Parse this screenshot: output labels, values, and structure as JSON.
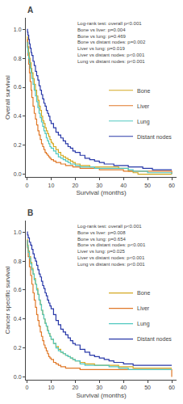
{
  "chart_data": [
    {
      "type": "step",
      "title": "A",
      "xlabel": "Survival (months)",
      "ylabel": "Overall survival",
      "annotation": "Log-rank test: overall p<0.001\nBone vs liver: p=0.004\nBone vs lung: p=0.469\nBone vs distant nodes: p=0.002\nLiver vs lung: p=0.019\nLiver vs distant nodes: p<0.001\nLung vs distant nodes: p<0.001",
      "xlim": [
        -0.5,
        62
      ],
      "ylim": [
        -0.02,
        1.08
      ],
      "xticks": [
        0,
        10,
        20,
        30,
        40,
        50,
        60
      ],
      "yticks": [
        {
          "value": 0.0,
          "label": "0.0"
        },
        0.2,
        0.4,
        0.6,
        0.8,
        {
          "value": 1.0,
          "label": "1.0"
        }
      ],
      "grid": false,
      "legend": "right",
      "series": [
        {
          "name": "Bone",
          "color": "#D4A820",
          "x": [
            0,
            0.2,
            0.4,
            0.7,
            1,
            1.3,
            1.7,
            2,
            2.5,
            3,
            3.5,
            4,
            4.5,
            5,
            5.5,
            6,
            6.5,
            7,
            7.5,
            8,
            8.5,
            9,
            9.5,
            10,
            10.5,
            11,
            12,
            13,
            14,
            15,
            16,
            17,
            18,
            19,
            20,
            21,
            22,
            24,
            26,
            28,
            30,
            32,
            34,
            36,
            38,
            40,
            42,
            44,
            46,
            60
          ],
          "values": [
            0.95,
            0.91,
            0.88,
            0.84,
            0.8,
            0.77,
            0.73,
            0.7,
            0.66,
            0.62,
            0.58,
            0.54,
            0.51,
            0.47,
            0.44,
            0.4,
            0.37,
            0.35,
            0.32,
            0.3,
            0.28,
            0.26,
            0.24,
            0.22,
            0.21,
            0.19,
            0.17,
            0.15,
            0.13,
            0.12,
            0.11,
            0.1,
            0.09,
            0.08,
            0.07,
            0.07,
            0.06,
            0.06,
            0.05,
            0.05,
            0.05,
            0.05,
            0.05,
            0.05,
            0.04,
            0.04,
            0.02,
            0.01,
            0.0,
            0.0
          ]
        },
        {
          "name": "Liver",
          "color": "#E07828",
          "x": [
            0,
            0.2,
            0.4,
            0.7,
            1,
            1.3,
            1.7,
            2,
            2.5,
            3,
            3.5,
            4,
            4.5,
            5,
            5.5,
            6,
            6.5,
            7,
            7.5,
            8,
            8.5,
            9,
            9.5,
            10,
            11,
            12,
            13,
            14,
            15,
            16,
            17,
            18,
            19,
            20,
            22,
            24,
            26,
            28,
            30,
            32,
            34,
            36,
            40,
            60
          ],
          "values": [
            0.93,
            0.88,
            0.82,
            0.76,
            0.7,
            0.64,
            0.58,
            0.53,
            0.47,
            0.42,
            0.38,
            0.34,
            0.3,
            0.27,
            0.24,
            0.21,
            0.19,
            0.17,
            0.15,
            0.14,
            0.13,
            0.12,
            0.11,
            0.1,
            0.09,
            0.08,
            0.08,
            0.07,
            0.07,
            0.06,
            0.06,
            0.06,
            0.05,
            0.05,
            0.04,
            0.04,
            0.04,
            0.04,
            0.03,
            0.03,
            0.03,
            0.03,
            0.02,
            0.0
          ]
        },
        {
          "name": "Lung",
          "color": "#50C8C0",
          "x": [
            0,
            0.2,
            0.4,
            0.7,
            1,
            1.3,
            1.7,
            2,
            2.5,
            3,
            3.5,
            4,
            4.5,
            5,
            5.5,
            6,
            6.5,
            7,
            7.5,
            8,
            8.5,
            9,
            9.5,
            10,
            11,
            12,
            13,
            14,
            15,
            16,
            17,
            18,
            19,
            20,
            22,
            24,
            26,
            28,
            30,
            32,
            34,
            36,
            38,
            40,
            42,
            44,
            50,
            52,
            55,
            60
          ],
          "values": [
            0.91,
            0.87,
            0.84,
            0.8,
            0.77,
            0.73,
            0.7,
            0.66,
            0.62,
            0.58,
            0.54,
            0.5,
            0.46,
            0.42,
            0.39,
            0.36,
            0.33,
            0.3,
            0.28,
            0.25,
            0.23,
            0.21,
            0.19,
            0.18,
            0.16,
            0.14,
            0.12,
            0.11,
            0.1,
            0.09,
            0.08,
            0.07,
            0.07,
            0.06,
            0.05,
            0.05,
            0.05,
            0.04,
            0.04,
            0.04,
            0.04,
            0.04,
            0.04,
            0.04,
            0.03,
            0.02,
            0.01,
            0.01,
            0.01,
            0.0
          ]
        },
        {
          "name": "Distant nodes",
          "color": "#2838A8",
          "x": [
            0,
            0.2,
            0.4,
            0.7,
            1,
            1.3,
            1.7,
            2,
            2.5,
            3,
            3.5,
            4,
            4.5,
            5,
            5.5,
            6,
            6.5,
            7,
            7.5,
            8,
            8.5,
            9,
            9.5,
            10,
            11,
            12,
            13,
            14,
            15,
            16,
            17,
            18,
            19,
            20,
            22,
            24,
            26,
            28,
            30,
            32,
            34,
            36,
            38,
            40,
            42,
            44,
            46,
            48,
            50,
            52,
            55,
            58,
            60
          ],
          "values": [
            1.0,
            0.98,
            0.96,
            0.93,
            0.9,
            0.87,
            0.84,
            0.82,
            0.78,
            0.75,
            0.71,
            0.68,
            0.65,
            0.61,
            0.58,
            0.55,
            0.52,
            0.49,
            0.47,
            0.44,
            0.42,
            0.4,
            0.37,
            0.35,
            0.32,
            0.29,
            0.27,
            0.25,
            0.23,
            0.21,
            0.19,
            0.18,
            0.16,
            0.15,
            0.13,
            0.11,
            0.1,
            0.09,
            0.08,
            0.07,
            0.07,
            0.06,
            0.06,
            0.06,
            0.05,
            0.05,
            0.05,
            0.04,
            0.04,
            0.03,
            0.03,
            0.03,
            0.03
          ]
        }
      ]
    },
    {
      "type": "step",
      "title": "B",
      "xlabel": "Survival (months)",
      "ylabel": "Cancer specific survival",
      "annotation": "Log-rank test: overall p<0.001\nBone vs liver: p=0.008\nBone vs lung: p=0.654\nBone vs distant nodes: p<0.001\nLiver vs lung: p=0.025\nLiver vs distant nodes: p<0.001\nLung vs distant nodes: p<0.001",
      "xlim": [
        -0.5,
        62
      ],
      "ylim": [
        -0.02,
        1.08
      ],
      "xticks": [
        0,
        10,
        20,
        30,
        40,
        50,
        60
      ],
      "yticks": [
        {
          "value": 0.0,
          "label": "0.0"
        },
        0.2,
        0.4,
        0.6,
        0.8,
        {
          "value": 1.0,
          "label": "1.0"
        }
      ],
      "grid": false,
      "legend": "right",
      "series": [
        {
          "name": "Bone",
          "color": "#D4A820",
          "x": [
            0,
            0.2,
            0.5,
            1,
            1.5,
            2,
            2.5,
            3,
            3.5,
            4,
            4.5,
            5,
            5.5,
            6,
            6.5,
            7,
            7.5,
            8,
            8.5,
            9,
            9.5,
            10,
            11,
            12,
            13,
            14,
            15,
            16,
            17,
            18,
            19,
            20,
            22,
            24,
            26,
            28,
            30,
            32,
            34,
            36,
            38,
            40,
            42,
            44,
            50,
            55,
            60
          ],
          "values": [
            0.95,
            0.91,
            0.87,
            0.83,
            0.79,
            0.75,
            0.71,
            0.68,
            0.64,
            0.61,
            0.57,
            0.53,
            0.5,
            0.46,
            0.43,
            0.4,
            0.37,
            0.35,
            0.32,
            0.3,
            0.28,
            0.26,
            0.23,
            0.21,
            0.19,
            0.17,
            0.16,
            0.15,
            0.14,
            0.13,
            0.12,
            0.11,
            0.1,
            0.09,
            0.09,
            0.08,
            0.08,
            0.08,
            0.08,
            0.08,
            0.07,
            0.07,
            0.07,
            0.06,
            0.06,
            0.06,
            0.06
          ]
        },
        {
          "name": "Liver",
          "color": "#E07828",
          "x": [
            0,
            0.2,
            0.5,
            1,
            1.5,
            2,
            2.5,
            3,
            3.5,
            4,
            4.5,
            5,
            5.5,
            6,
            6.5,
            7,
            7.5,
            8,
            8.5,
            9,
            9.5,
            10,
            11,
            12,
            13,
            14,
            15,
            16,
            17,
            18,
            19,
            20,
            22,
            24,
            26,
            28,
            30,
            32,
            34,
            36,
            38,
            40,
            60
          ],
          "values": [
            0.94,
            0.89,
            0.83,
            0.76,
            0.7,
            0.64,
            0.58,
            0.53,
            0.48,
            0.43,
            0.39,
            0.35,
            0.31,
            0.28,
            0.25,
            0.22,
            0.2,
            0.18,
            0.16,
            0.14,
            0.13,
            0.12,
            0.1,
            0.09,
            0.08,
            0.07,
            0.07,
            0.06,
            0.06,
            0.06,
            0.06,
            0.06,
            0.05,
            0.05,
            0.05,
            0.05,
            0.05,
            0.05,
            0.05,
            0.05,
            0.05,
            0.05,
            0.0
          ]
        },
        {
          "name": "Lung",
          "color": "#50C8C0",
          "x": [
            0,
            0.2,
            0.5,
            1,
            1.5,
            2,
            2.5,
            3,
            3.5,
            4,
            4.5,
            5,
            5.5,
            6,
            6.5,
            7,
            7.5,
            8,
            8.5,
            9,
            9.5,
            10,
            11,
            12,
            13,
            14,
            15,
            16,
            17,
            18,
            19,
            20,
            22,
            24,
            26,
            28,
            30,
            32,
            34,
            36,
            38,
            40,
            42,
            44,
            50,
            55,
            60
          ],
          "values": [
            0.94,
            0.9,
            0.86,
            0.82,
            0.78,
            0.74,
            0.71,
            0.67,
            0.64,
            0.6,
            0.57,
            0.53,
            0.5,
            0.46,
            0.43,
            0.4,
            0.37,
            0.35,
            0.32,
            0.3,
            0.28,
            0.26,
            0.23,
            0.2,
            0.18,
            0.17,
            0.16,
            0.15,
            0.14,
            0.13,
            0.12,
            0.11,
            0.09,
            0.08,
            0.08,
            0.08,
            0.08,
            0.08,
            0.07,
            0.07,
            0.06,
            0.06,
            0.05,
            0.05,
            0.05,
            0.05,
            0.05
          ]
        },
        {
          "name": "Distant nodes",
          "color": "#2838A8",
          "x": [
            0,
            0.2,
            0.5,
            1,
            1.5,
            2,
            2.5,
            3,
            3.5,
            4,
            4.5,
            5,
            5.5,
            6,
            6.5,
            7,
            7.5,
            8,
            8.5,
            9,
            9.5,
            10,
            11,
            12,
            13,
            14,
            15,
            16,
            17,
            18,
            19,
            20,
            22,
            24,
            26,
            28,
            30,
            32,
            34,
            36,
            38,
            40,
            42,
            44,
            50,
            55,
            60
          ],
          "values": [
            1.0,
            0.98,
            0.96,
            0.93,
            0.91,
            0.88,
            0.85,
            0.82,
            0.8,
            0.77,
            0.74,
            0.71,
            0.69,
            0.66,
            0.63,
            0.61,
            0.58,
            0.56,
            0.53,
            0.51,
            0.49,
            0.47,
            0.43,
            0.39,
            0.36,
            0.33,
            0.31,
            0.29,
            0.27,
            0.25,
            0.23,
            0.22,
            0.19,
            0.17,
            0.15,
            0.14,
            0.13,
            0.12,
            0.11,
            0.1,
            0.1,
            0.09,
            0.09,
            0.08,
            0.08,
            0.08,
            0.08
          ]
        }
      ]
    }
  ]
}
